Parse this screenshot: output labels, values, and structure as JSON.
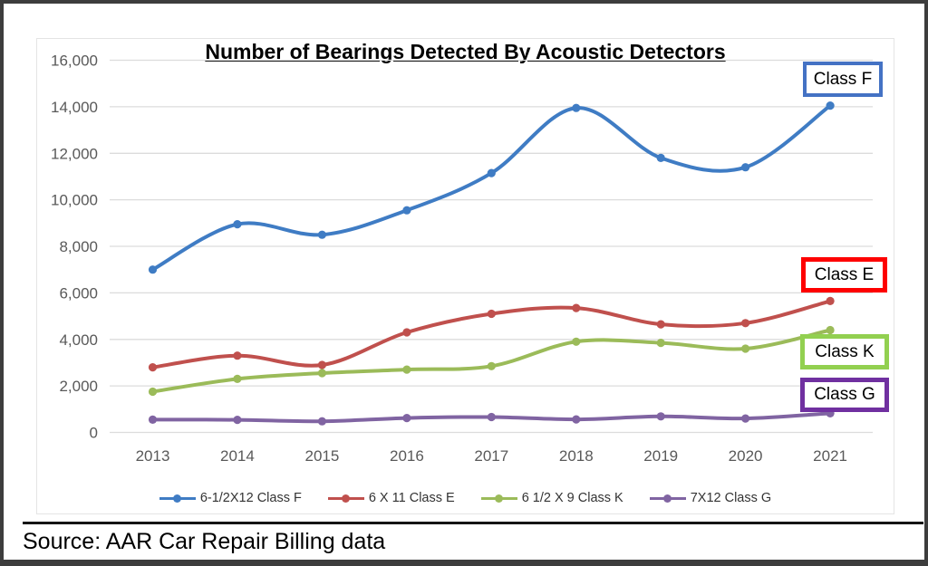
{
  "frame": {
    "border_color": "#3d3d3d",
    "background": "#ffffff"
  },
  "source_note": "Source: AAR Car Repair Billing data",
  "chart_data": {
    "type": "line",
    "title": "Number of Bearings Detected By Acoustic Detectors",
    "smooth_lines": true,
    "markers": "circle",
    "grid": true,
    "gridline_color": "#dcdcdc",
    "legend_position": "bottom",
    "x_tick_labels": [
      "2013",
      "2014",
      "2015",
      "2016",
      "2017",
      "2018",
      "2019",
      "2020",
      "2021"
    ],
    "y_axis": {
      "min": 0,
      "max": 16000,
      "step": 2000,
      "tick_labels": [
        "0",
        "2,000",
        "4,000",
        "6,000",
        "8,000",
        "10,000",
        "12,000",
        "14,000",
        "16,000"
      ],
      "tick_color": "#595959"
    },
    "series": [
      {
        "name": "Class F",
        "legend_label": "6-1/2X12 Class F",
        "color": "#3f7cc4",
        "values": [
          7000,
          8950,
          8500,
          9550,
          11150,
          13950,
          11800,
          11400,
          14050
        ]
      },
      {
        "name": "Class E",
        "legend_label": "6 X 11 Class E",
        "color": "#c0504d",
        "values": [
          2800,
          3300,
          2900,
          4300,
          5100,
          5350,
          4650,
          4700,
          5650
        ]
      },
      {
        "name": "Class K",
        "legend_label": "6 1/2 X 9 Class K",
        "color": "#9bbb59",
        "values": [
          1750,
          2300,
          2550,
          2700,
          2850,
          3900,
          3850,
          3600,
          4400
        ]
      },
      {
        "name": "Class G",
        "legend_label": "7X12 Class G",
        "color": "#8064a2",
        "values": [
          550,
          540,
          480,
          620,
          660,
          560,
          690,
          600,
          820
        ]
      }
    ],
    "callouts": [
      {
        "label": "Class F",
        "border_color": "#4472c4"
      },
      {
        "label": "Class E",
        "border_color": "#fe0000"
      },
      {
        "label": "Class K",
        "border_color": "#92d050"
      },
      {
        "label": "Class G",
        "border_color": "#7030a0"
      }
    ]
  }
}
